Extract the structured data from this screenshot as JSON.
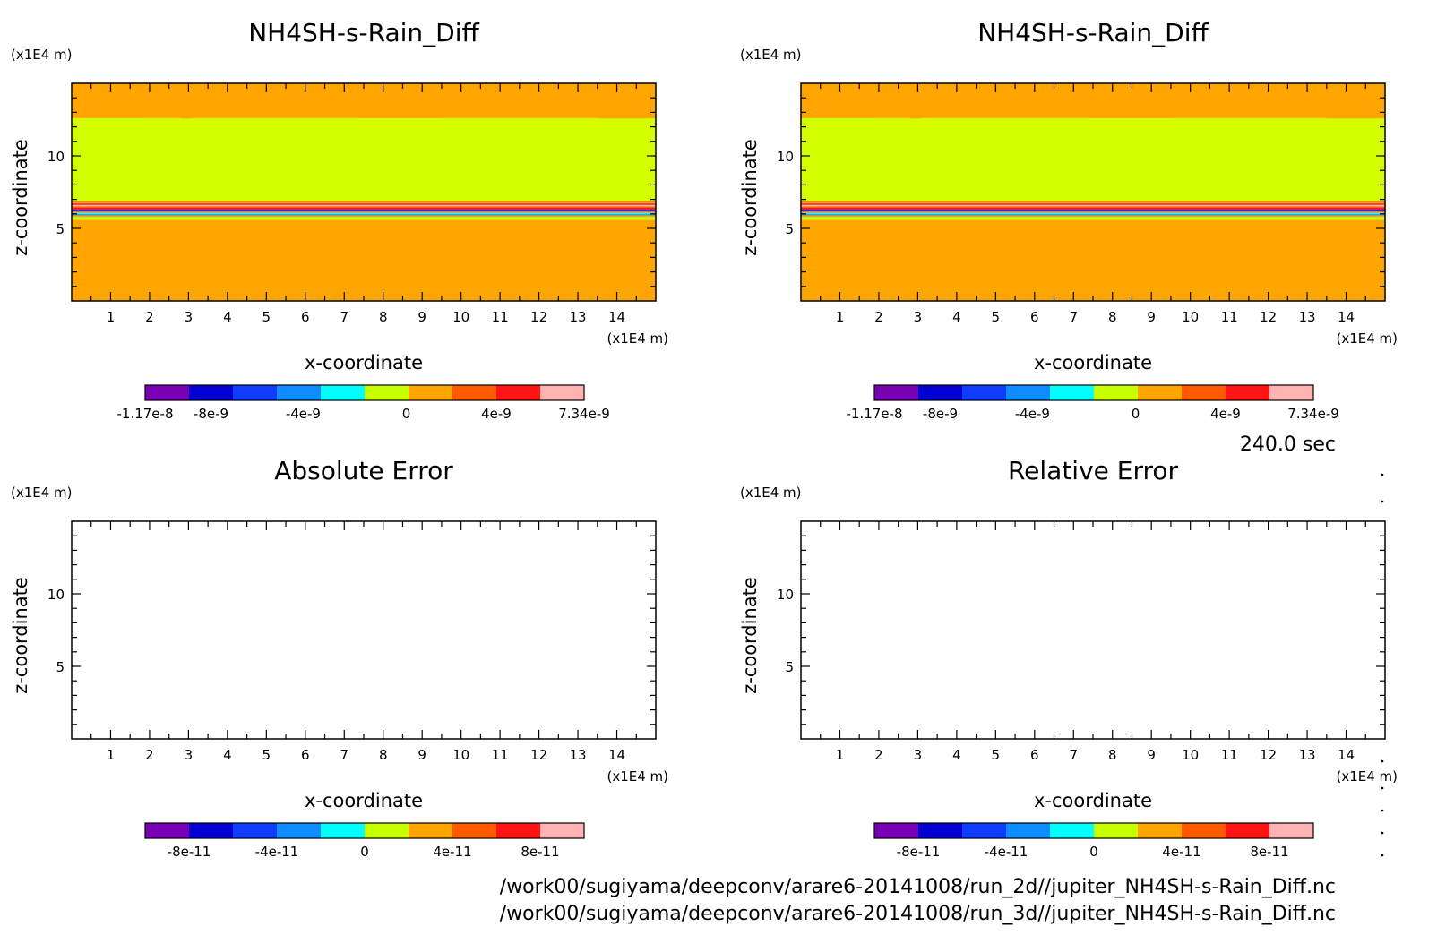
{
  "paths": [
    "/work00/sugiyama/deepconv/arare6-20141008/run_2d//jupiter_NH4SH-s-Rain_Diff.nc",
    "/work00/sugiyama/deepconv/arare6-20141008/run_3d//jupiter_NH4SH-s-Rain_Diff.nc"
  ],
  "time_label": "240.0 sec",
  "colors": {
    "orange": "#ffa500",
    "yellow_green": "#d4ff00",
    "palette": [
      "#7a00b4",
      "#0000d2",
      "#0f3cff",
      "#0f8cff",
      "#00ffff",
      "#c8ff00",
      "#ffa500",
      "#ff5a00",
      "#ff1414",
      "#ffb4b4"
    ]
  },
  "chart_data": [
    {
      "type": "heatmap",
      "title": "NH4SH-s-Rain_Diff",
      "xlabel": "x-coordinate",
      "ylabel": "z-coordinate",
      "x_unit": "(x1E4 m)",
      "y_unit": "(x1E4 m)",
      "xlim": [
        0,
        15
      ],
      "ylim": [
        0,
        15
      ],
      "xticks": [
        "1",
        "2",
        "3",
        "4",
        "5",
        "6",
        "7",
        "8",
        "9",
        "10",
        "11",
        "12",
        "13",
        "14"
      ],
      "yticks": [
        "5",
        "10"
      ],
      "layers": [
        {
          "z_from": 0,
          "z_to": 5.6,
          "level": "0 to 2e-9"
        },
        {
          "z_from": 5.6,
          "z_to": 6.9,
          "level": "banded -1.17e-8 to 7.34e-9"
        },
        {
          "z_from": 6.9,
          "z_to": 12.6,
          "level": "-2e-9 to 0"
        },
        {
          "z_from": 12.6,
          "z_to": 15,
          "level": "0 to 2e-9"
        }
      ],
      "colorbar": {
        "min": "-1.17e-8",
        "max": "7.34e-9",
        "labels": [
          "-1.17e-8",
          "-8e-9",
          "-4e-9",
          "0",
          "4e-9",
          "7.34e-9"
        ],
        "n_colors": 11
      }
    },
    {
      "type": "heatmap",
      "title": "NH4SH-s-Rain_Diff",
      "xlabel": "x-coordinate",
      "ylabel": "z-coordinate",
      "x_unit": "(x1E4 m)",
      "y_unit": "(x1E4 m)",
      "xlim": [
        0,
        15
      ],
      "ylim": [
        0,
        15
      ],
      "xticks": [
        "1",
        "2",
        "3",
        "4",
        "5",
        "6",
        "7",
        "8",
        "9",
        "10",
        "11",
        "12",
        "13",
        "14"
      ],
      "yticks": [
        "5",
        "10"
      ],
      "layers": [
        {
          "z_from": 0,
          "z_to": 5.6,
          "level": "0 to 2e-9"
        },
        {
          "z_from": 5.6,
          "z_to": 6.9,
          "level": "banded -1.17e-8 to 7.34e-9"
        },
        {
          "z_from": 6.9,
          "z_to": 12.6,
          "level": "-2e-9 to 0"
        },
        {
          "z_from": 12.6,
          "z_to": 15,
          "level": "0 to 2e-9"
        }
      ],
      "colorbar": {
        "min": "-1.17e-8",
        "max": "7.34e-9",
        "labels": [
          "-1.17e-8",
          "-8e-9",
          "-4e-9",
          "0",
          "4e-9",
          "7.34e-9"
        ],
        "n_colors": 11
      }
    },
    {
      "type": "heatmap",
      "title": "Absolute Error",
      "xlabel": "x-coordinate",
      "ylabel": "z-coordinate",
      "x_unit": "(x1E4 m)",
      "y_unit": "(x1E4 m)",
      "xlim": [
        0,
        15
      ],
      "ylim": [
        0,
        15
      ],
      "xticks": [
        "1",
        "2",
        "3",
        "4",
        "5",
        "6",
        "7",
        "8",
        "9",
        "10",
        "11",
        "12",
        "13",
        "14"
      ],
      "yticks": [
        "5",
        "10"
      ],
      "layers": [],
      "colorbar": {
        "labels": [
          "-8e-11",
          "-4e-11",
          "0",
          "4e-11",
          "8e-11"
        ],
        "n_colors": 10
      }
    },
    {
      "type": "heatmap",
      "title": "Relative Error",
      "xlabel": "x-coordinate",
      "ylabel": "z-coordinate",
      "x_unit": "(x1E4 m)",
      "y_unit": "(x1E4 m)",
      "xlim": [
        0,
        15
      ],
      "ylim": [
        0,
        15
      ],
      "xticks": [
        "1",
        "2",
        "3",
        "4",
        "5",
        "6",
        "7",
        "8",
        "9",
        "10",
        "11",
        "12",
        "13",
        "14"
      ],
      "yticks": [
        "5",
        "10"
      ],
      "layers": [],
      "colorbar": {
        "labels": [
          "-8e-11",
          "-4e-11",
          "0",
          "4e-11",
          "8e-11"
        ],
        "n_colors": 10
      }
    }
  ]
}
